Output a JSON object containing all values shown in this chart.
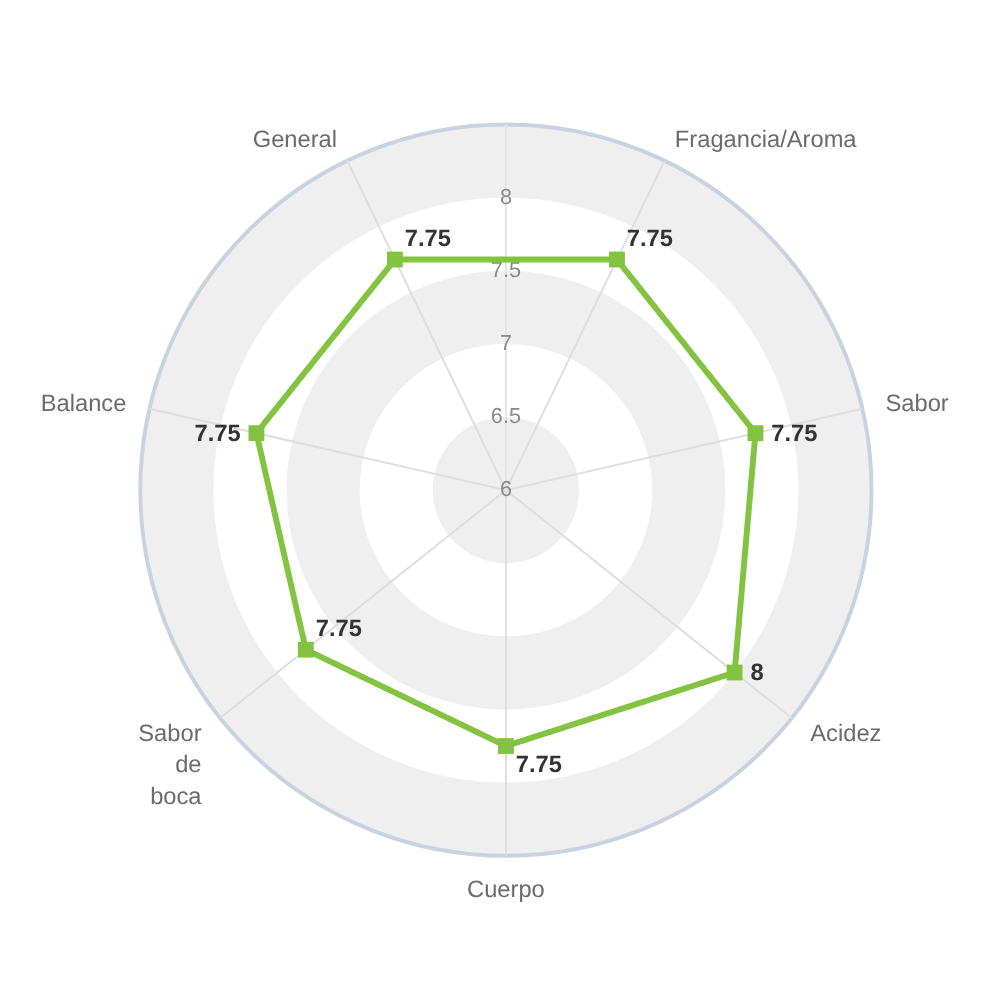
{
  "chart_data": {
    "type": "radar",
    "categories": [
      "Fragancia/Aroma",
      "Sabor",
      "Acidez",
      "Cuerpo",
      "Sabor de boca",
      "Balance",
      "General"
    ],
    "series": [
      {
        "color": "#84c341",
        "values": [
          7.75,
          7.75,
          8,
          7.75,
          7.75,
          7.75,
          7.75
        ]
      }
    ],
    "ylim": [
      6,
      8.5
    ],
    "yticks": [
      6,
      6.5,
      7,
      7.5,
      8
    ],
    "grid": true,
    "marker": "square",
    "line_style": "solid",
    "data_labels": true
  }
}
